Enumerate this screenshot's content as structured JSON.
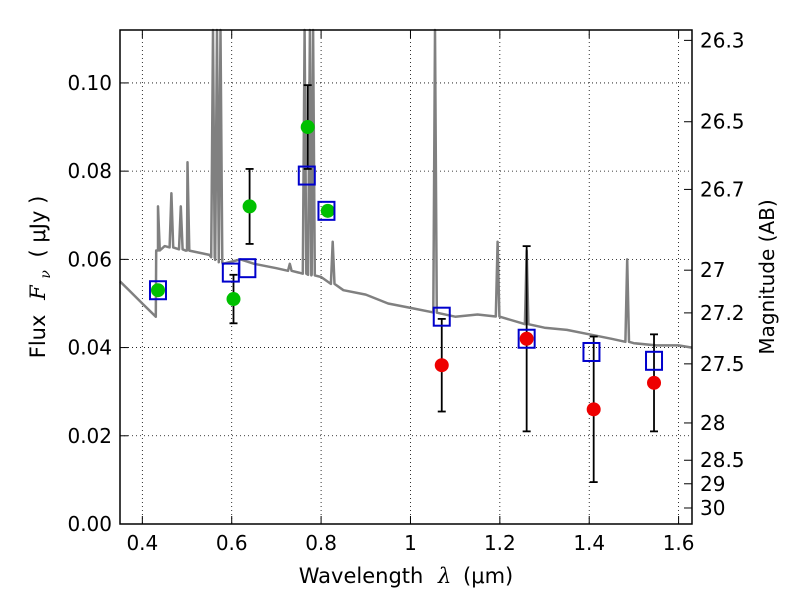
{
  "chart_data": {
    "type": "scatter",
    "xlabel_prefix": "Wavelength",
    "xlabel_symbol": "λ",
    "xlabel_unit": "(μm)",
    "ylabel_prefix": "Flux",
    "ylabel_symbol": "F",
    "ylabel_subscript": "ν",
    "ylabel_unit": "( μJy )",
    "y2label": "Magnitude (AB)",
    "xlim": [
      0.35,
      1.63
    ],
    "ylim": [
      0.0,
      0.112
    ],
    "grid": true,
    "x_ticks": [
      "0.4",
      "0.6",
      "0.8",
      "1",
      "1.2",
      "1.4",
      "1.6"
    ],
    "y_ticks": [
      "0.00",
      "0.02",
      "0.04",
      "0.06",
      "0.08",
      "0.10"
    ],
    "mag_ticks": [
      "26.3",
      "26.5",
      "26.7",
      "27",
      "27.2",
      "27.5",
      "28",
      "28.5",
      "29",
      "30"
    ],
    "template_spectrum": {
      "color": "#808080",
      "continuum": [
        [
          0.35,
          0.055
        ],
        [
          0.38,
          0.052
        ],
        [
          0.4,
          0.05
        ],
        [
          0.43,
          0.047
        ],
        [
          0.435,
          0.062
        ],
        [
          0.45,
          0.063
        ],
        [
          0.5,
          0.062
        ],
        [
          0.55,
          0.061
        ],
        [
          0.58,
          0.059
        ],
        [
          0.62,
          0.06
        ],
        [
          0.65,
          0.059
        ],
        [
          0.7,
          0.058
        ],
        [
          0.75,
          0.057
        ],
        [
          0.8,
          0.056
        ],
        [
          0.85,
          0.053
        ],
        [
          0.9,
          0.052
        ],
        [
          0.95,
          0.05
        ],
        [
          1.0,
          0.049
        ],
        [
          1.05,
          0.048
        ],
        [
          1.1,
          0.047
        ],
        [
          1.15,
          0.0475
        ],
        [
          1.2,
          0.047
        ],
        [
          1.25,
          0.0455
        ],
        [
          1.3,
          0.0445
        ],
        [
          1.35,
          0.044
        ],
        [
          1.4,
          0.043
        ],
        [
          1.45,
          0.042
        ],
        [
          1.5,
          0.041
        ],
        [
          1.55,
          0.0405
        ],
        [
          1.6,
          0.0405
        ],
        [
          1.63,
          0.04
        ]
      ],
      "lines": [
        [
          0.435,
          0.072
        ],
        [
          0.465,
          0.075
        ],
        [
          0.486,
          0.072
        ],
        [
          0.501,
          0.082
        ],
        [
          0.558,
          0.15
        ],
        [
          0.567,
          0.15
        ],
        [
          0.575,
          0.15
        ],
        [
          0.73,
          0.059
        ],
        [
          0.763,
          0.15
        ],
        [
          0.775,
          0.15
        ],
        [
          0.782,
          0.15
        ],
        [
          0.826,
          0.064
        ],
        [
          1.055,
          0.15
        ],
        [
          1.195,
          0.064
        ],
        [
          1.26,
          0.062
        ],
        [
          1.485,
          0.06
        ]
      ]
    },
    "series": [
      {
        "marker": "square",
        "color": "#0000cc",
        "points": [
          [
            0.435,
            0.053
          ],
          [
            0.598,
            0.057
          ],
          [
            0.635,
            0.058
          ],
          [
            0.768,
            0.079
          ],
          [
            0.812,
            0.071
          ],
          [
            1.07,
            0.047
          ],
          [
            1.26,
            0.042
          ],
          [
            1.405,
            0.039
          ],
          [
            1.545,
            0.037
          ]
        ]
      },
      {
        "marker": "circle",
        "color": "#00c000",
        "points": [
          [
            0.435,
            0.053
          ],
          [
            0.604,
            0.051
          ],
          [
            0.64,
            0.072
          ],
          [
            0.77,
            0.09
          ],
          [
            0.815,
            0.071
          ]
        ],
        "errors": [
          0,
          0.0055,
          0.0085,
          0.0095,
          0
        ]
      },
      {
        "marker": "circle",
        "color": "#ee0000",
        "points": [
          [
            1.07,
            0.036
          ],
          [
            1.26,
            0.042
          ],
          [
            1.41,
            0.026
          ],
          [
            1.545,
            0.032
          ]
        ],
        "errors": [
          0.0105,
          0.021,
          0.0165,
          0.011
        ]
      }
    ]
  }
}
